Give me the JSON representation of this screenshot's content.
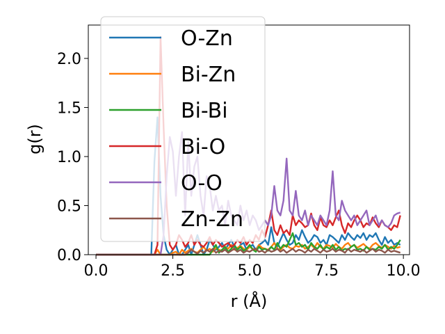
{
  "chart_data": {
    "type": "line",
    "title": "",
    "xlabel": "r (Å)",
    "ylabel": "g(r)",
    "xlim": [
      -0.25,
      10.2
    ],
    "ylim": [
      0,
      2.34
    ],
    "xticks": [
      0.0,
      2.5,
      5.0,
      7.5,
      10.0
    ],
    "xtick_labels": [
      "0.0",
      "2.5",
      "5.0",
      "7.5",
      "10.0"
    ],
    "yticks": [
      0.0,
      0.5,
      1.0,
      1.5,
      2.0
    ],
    "ytick_labels": [
      "0.0",
      "0.5",
      "1.0",
      "1.5",
      "2.0"
    ],
    "grid": false,
    "legend_position": "upper-left",
    "r_start": 0.0,
    "r_step": 0.1,
    "series": [
      {
        "name": "O-Zn",
        "color": "#1f77b4",
        "values": [
          0,
          0,
          0,
          0,
          0,
          0,
          0,
          0,
          0,
          0,
          0,
          0,
          0,
          0,
          0,
          0,
          0,
          0,
          0,
          0.95,
          1.4,
          0.6,
          0.2,
          0.05,
          0,
          0.05,
          0.1,
          0,
          0,
          0.05,
          0.1,
          0,
          0.1,
          0.2,
          0.1,
          0,
          0.05,
          0.15,
          0.1,
          0.05,
          0.08,
          0.12,
          0.05,
          0.1,
          0.15,
          0.08,
          0.05,
          0.1,
          0.12,
          0.05,
          0.08,
          0.1,
          0.05,
          0.1,
          0.12,
          0.15,
          0.1,
          0.28,
          0.12,
          0.08,
          0.15,
          0.22,
          0.15,
          0.1,
          0.12,
          0.2,
          0.15,
          0.25,
          0.18,
          0.12,
          0.15,
          0.2,
          0.18,
          0.12,
          0.15,
          0.1,
          0.2,
          0.18,
          0.15,
          0.12,
          0.2,
          0.15,
          0.22,
          0.18,
          0.15,
          0.2,
          0.17,
          0.22,
          0.15,
          0.2,
          0.18,
          0.22,
          0.15,
          0.1,
          0.18,
          0.12,
          0.15,
          0.1,
          0.12,
          0.1
        ]
      },
      {
        "name": "Bi-Zn",
        "color": "#ff7f0e",
        "values": [
          0,
          0,
          0,
          0,
          0,
          0,
          0,
          0,
          0,
          0,
          0,
          0,
          0,
          0,
          0,
          0,
          0,
          0,
          0,
          0,
          0.05,
          0,
          0,
          0,
          0,
          0.02,
          0.03,
          0,
          0.05,
          0.02,
          0.04,
          0.06,
          0.03,
          0.02,
          0.05,
          0.08,
          0.04,
          0.06,
          0.03,
          0.07,
          0.05,
          0.04,
          0.08,
          0.06,
          0.1,
          0.05,
          0.07,
          0.09,
          0.06,
          0.05,
          0.08,
          0.06,
          0.04,
          0.1,
          0.07,
          0.06,
          0.05,
          0.08,
          0.12,
          0.06,
          0.05,
          0.08,
          0.1,
          0.07,
          0.06,
          0.09,
          0.08,
          0.1,
          0.06,
          0.08,
          0.1,
          0.07,
          0.12,
          0.08,
          0.06,
          0.1,
          0.09,
          0.07,
          0.11,
          0.08,
          0.06,
          0.1,
          0.12,
          0.08,
          0.1,
          0.07,
          0.09,
          0.11,
          0.08,
          0.06,
          0.1,
          0.12,
          0.09,
          0.07,
          0.1,
          0.08,
          0.06,
          0.09,
          0.07,
          0.08
        ]
      },
      {
        "name": "Bi-Bi",
        "color": "#2ca02c",
        "values": [
          0,
          0,
          0,
          0,
          0,
          0,
          0,
          0,
          0,
          0,
          0,
          0,
          0,
          0,
          0,
          0,
          0,
          0,
          0,
          0,
          0,
          0,
          0,
          0,
          0,
          0,
          0,
          0,
          0,
          0,
          0,
          0,
          0,
          0,
          0,
          0,
          0,
          0,
          0.05,
          0.1,
          0.02,
          0.05,
          0.08,
          0.03,
          0.06,
          0.1,
          0.05,
          0.08,
          0.04,
          0.06,
          0.1,
          0.05,
          0.03,
          0.08,
          0.05,
          0.06,
          0.04,
          0.08,
          0.05,
          0.12,
          0.06,
          0.1,
          0.08,
          0.15,
          0.22,
          0.1,
          0.12,
          0.08,
          0.1,
          0.05,
          0.12,
          0.08,
          0.06,
          0.1,
          0.05,
          0.08,
          0.06,
          0.1,
          0.05,
          0.08,
          0.04,
          0.06,
          0.05,
          0.08,
          0.1,
          0.05,
          0.06,
          0.04,
          0.08,
          0.05,
          0.06,
          0.05,
          0.08,
          0.06,
          0.1,
          0.05,
          0.08,
          0.06,
          0.1,
          0.15
        ]
      },
      {
        "name": "Bi-O",
        "color": "#d62728",
        "values": [
          0,
          0,
          0,
          0,
          0,
          0,
          0,
          0,
          0,
          0,
          0,
          0,
          0,
          0,
          0,
          0,
          0,
          0,
          0,
          0,
          0.1,
          2.22,
          1.3,
          0.5,
          0.1,
          0.05,
          0.1,
          0.2,
          0.15,
          0.08,
          0.12,
          0.2,
          0.1,
          0.15,
          0.1,
          0.08,
          0.12,
          0.18,
          0.1,
          0.15,
          0.12,
          0.08,
          0.1,
          0.12,
          0.08,
          0.1,
          0.15,
          0.12,
          0.18,
          0.1,
          0.15,
          0.12,
          0.2,
          0.15,
          0.25,
          0.18,
          0.3,
          0.45,
          0.25,
          0.2,
          0.3,
          0.22,
          0.25,
          0.2,
          0.4,
          0.3,
          0.35,
          0.32,
          0.28,
          0.3,
          0.42,
          0.3,
          0.25,
          0.38,
          0.3,
          0.28,
          0.35,
          0.3,
          0.38,
          0.45,
          0.3,
          0.22,
          0.32,
          0.28,
          0.35,
          0.4,
          0.35,
          0.28,
          0.32,
          0.3,
          0.38,
          0.32,
          0.28,
          0.35,
          0.3,
          0.28,
          0.25,
          0.3,
          0.28,
          0.4
        ]
      },
      {
        "name": "O-O",
        "color": "#9467bd",
        "values": [
          0,
          0,
          0,
          0,
          0,
          0,
          0,
          0,
          0,
          0,
          0,
          0,
          0,
          0,
          0,
          0,
          0,
          0,
          0,
          0,
          0,
          0,
          0.2,
          0.8,
          1.2,
          1.05,
          0.6,
          1.0,
          1.25,
          0.4,
          1.15,
          0.6,
          0.9,
          1.0,
          0.6,
          0.4,
          0.8,
          0.7,
          0.45,
          0.6,
          0.45,
          0.5,
          0.3,
          0.55,
          0.4,
          0.35,
          0.3,
          0.5,
          0.35,
          0.45,
          0.3,
          0.4,
          0.35,
          0.25,
          0.3,
          0.35,
          0.3,
          0.4,
          0.7,
          0.45,
          0.4,
          0.55,
          0.98,
          0.45,
          0.4,
          0.65,
          0.4,
          0.35,
          0.45,
          0.3,
          0.4,
          0.35,
          0.3,
          0.4,
          0.35,
          0.3,
          0.45,
          0.85,
          0.4,
          0.35,
          0.55,
          0.45,
          0.4,
          0.35,
          0.4,
          0.3,
          0.35,
          0.4,
          0.45,
          0.3,
          0.35,
          0.4,
          0.3,
          0.35,
          0.3,
          0.28,
          0.32,
          0.4,
          0.42,
          0.43
        ]
      },
      {
        "name": "Zn-Zn",
        "color": "#8c564b",
        "values": [
          0,
          0,
          0,
          0,
          0,
          0,
          0,
          0,
          0,
          0,
          0,
          0,
          0,
          0,
          0,
          0,
          0,
          0,
          0,
          0,
          0,
          0,
          0,
          0,
          0,
          0,
          0,
          0,
          0,
          0,
          0.02,
          0.05,
          0.03,
          0.01,
          0.04,
          0.02,
          0.05,
          0.03,
          0.06,
          0.02,
          0.04,
          0.03,
          0.05,
          0.02,
          0.04,
          0.06,
          0.03,
          0.05,
          0.02,
          0.04,
          0.03,
          0.05,
          0.06,
          0.03,
          0.04,
          0.02,
          0.05,
          0.03,
          0.04,
          0.06,
          0.03,
          0.05,
          0.02,
          0.04,
          0.06,
          0.03,
          0.05,
          0.04,
          0.02,
          0.05,
          0.03,
          0.06,
          0.04,
          0.02,
          0.05,
          0.03,
          0.04,
          0.06,
          0.03,
          0.05,
          0.04,
          0.02,
          0.06,
          0.03,
          0.05,
          0.04,
          0.03,
          0.05,
          0.02,
          0.04,
          0.06,
          0.03,
          0.05,
          0.04,
          0.02,
          0.05,
          0.03,
          0.04,
          0.03,
          0.02
        ]
      }
    ]
  }
}
